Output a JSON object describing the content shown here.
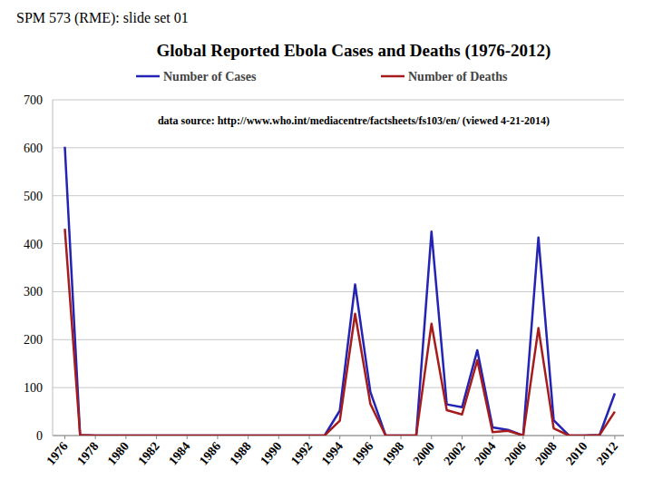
{
  "chart_data": {
    "type": "line",
    "subtitle": "SPM 573 (RME): slide set 01",
    "title": "Global Reported Ebola Cases and Deaths (1976-2012)",
    "annotations": [
      "data source: http://www.who.int/mediacentre/factsheets/fs103/en/ (viewed 4-21-2014)"
    ],
    "x": [
      1976,
      1977,
      1978,
      1979,
      1980,
      1981,
      1982,
      1983,
      1984,
      1985,
      1986,
      1987,
      1988,
      1989,
      1990,
      1991,
      1992,
      1993,
      1994,
      1995,
      1996,
      1997,
      1998,
      1999,
      2000,
      2001,
      2002,
      2003,
      2004,
      2005,
      2006,
      2007,
      2008,
      2009,
      2010,
      2011,
      2012
    ],
    "series": [
      {
        "name": "Number of Cases",
        "color": "#2323b4",
        "values": [
          602,
          1,
          0,
          0,
          0,
          0,
          0,
          0,
          0,
          0,
          0,
          0,
          0,
          0,
          0,
          0,
          0,
          0,
          52,
          315,
          91,
          0,
          0,
          0,
          425,
          65,
          59,
          178,
          17,
          12,
          0,
          413,
          32,
          0,
          0,
          1,
          88
        ]
      },
      {
        "name": "Number of Deaths",
        "color": "#a61c1c",
        "values": [
          431,
          1,
          0,
          0,
          0,
          0,
          0,
          0,
          0,
          0,
          0,
          0,
          0,
          0,
          0,
          0,
          0,
          0,
          31,
          254,
          66,
          0,
          0,
          0,
          233,
          53,
          44,
          157,
          7,
          10,
          0,
          224,
          15,
          0,
          0,
          1,
          50
        ]
      }
    ],
    "xlim": [
      1975.2,
      2012.6
    ],
    "xticks": [
      1976,
      1978,
      1980,
      1982,
      1984,
      1986,
      1988,
      1990,
      1992,
      1994,
      1996,
      1998,
      2000,
      2002,
      2004,
      2006,
      2008,
      2010,
      2012
    ],
    "ylim": [
      0,
      700
    ],
    "yticks": [
      0,
      100,
      200,
      300,
      400,
      500,
      600,
      700
    ],
    "grid": true,
    "legend": "top"
  }
}
